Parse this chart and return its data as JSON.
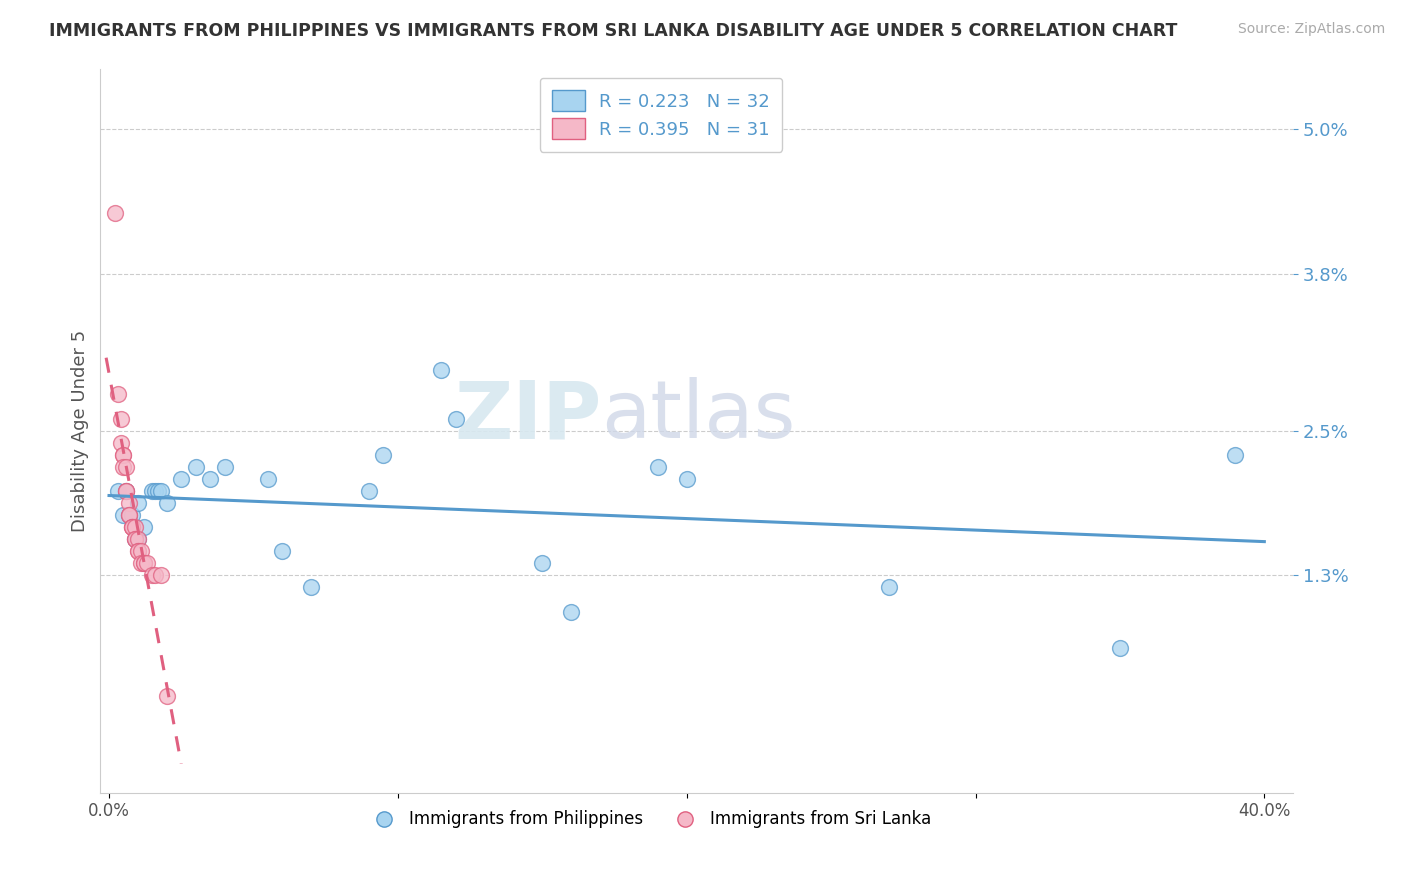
{
  "title": "IMMIGRANTS FROM PHILIPPINES VS IMMIGRANTS FROM SRI LANKA DISABILITY AGE UNDER 5 CORRELATION CHART",
  "source": "Source: ZipAtlas.com",
  "ylabel": "Disability Age Under 5",
  "y_ticks": [
    0.013,
    0.025,
    0.038,
    0.05
  ],
  "y_tick_labels": [
    "1.3%",
    "2.5%",
    "3.8%",
    "5.0%"
  ],
  "x_lim": [
    -0.003,
    0.41
  ],
  "y_lim": [
    -0.005,
    0.055
  ],
  "watermark_zip": "ZIP",
  "watermark_atlas": "atlas",
  "legend_R1": "R = 0.223",
  "legend_N1": "N = 32",
  "legend_R2": "R = 0.395",
  "legend_N2": "N = 31",
  "color_philippines": "#a8d4f0",
  "color_srilanka": "#f5b8c8",
  "line_color_philippines": "#5599cc",
  "line_color_srilanka": "#e06080",
  "phil_scatter_data": [
    [
      0.003,
      0.02
    ],
    [
      0.005,
      0.018
    ],
    [
      0.006,
      0.02
    ],
    [
      0.007,
      0.018
    ],
    [
      0.008,
      0.018
    ],
    [
      0.009,
      0.016
    ],
    [
      0.01,
      0.016
    ],
    [
      0.01,
      0.019
    ],
    [
      0.012,
      0.017
    ],
    [
      0.015,
      0.02
    ],
    [
      0.016,
      0.02
    ],
    [
      0.017,
      0.02
    ],
    [
      0.018,
      0.02
    ],
    [
      0.02,
      0.019
    ],
    [
      0.025,
      0.021
    ],
    [
      0.03,
      0.022
    ],
    [
      0.035,
      0.021
    ],
    [
      0.04,
      0.022
    ],
    [
      0.055,
      0.021
    ],
    [
      0.06,
      0.015
    ],
    [
      0.07,
      0.012
    ],
    [
      0.09,
      0.02
    ],
    [
      0.095,
      0.023
    ],
    [
      0.115,
      0.03
    ],
    [
      0.12,
      0.026
    ],
    [
      0.15,
      0.014
    ],
    [
      0.16,
      0.01
    ],
    [
      0.19,
      0.022
    ],
    [
      0.2,
      0.021
    ],
    [
      0.27,
      0.012
    ],
    [
      0.35,
      0.007
    ],
    [
      0.39,
      0.023
    ]
  ],
  "lanka_scatter_data": [
    [
      0.002,
      0.043
    ],
    [
      0.003,
      0.028
    ],
    [
      0.004,
      0.026
    ],
    [
      0.004,
      0.024
    ],
    [
      0.005,
      0.023
    ],
    [
      0.005,
      0.023
    ],
    [
      0.005,
      0.022
    ],
    [
      0.006,
      0.022
    ],
    [
      0.006,
      0.02
    ],
    [
      0.006,
      0.02
    ],
    [
      0.007,
      0.019
    ],
    [
      0.007,
      0.018
    ],
    [
      0.007,
      0.018
    ],
    [
      0.008,
      0.017
    ],
    [
      0.008,
      0.017
    ],
    [
      0.008,
      0.017
    ],
    [
      0.009,
      0.017
    ],
    [
      0.009,
      0.016
    ],
    [
      0.009,
      0.016
    ],
    [
      0.01,
      0.016
    ],
    [
      0.01,
      0.015
    ],
    [
      0.01,
      0.015
    ],
    [
      0.011,
      0.015
    ],
    [
      0.011,
      0.014
    ],
    [
      0.012,
      0.014
    ],
    [
      0.012,
      0.014
    ],
    [
      0.013,
      0.014
    ],
    [
      0.015,
      0.013
    ],
    [
      0.016,
      0.013
    ],
    [
      0.018,
      0.013
    ],
    [
      0.02,
      0.003
    ]
  ]
}
